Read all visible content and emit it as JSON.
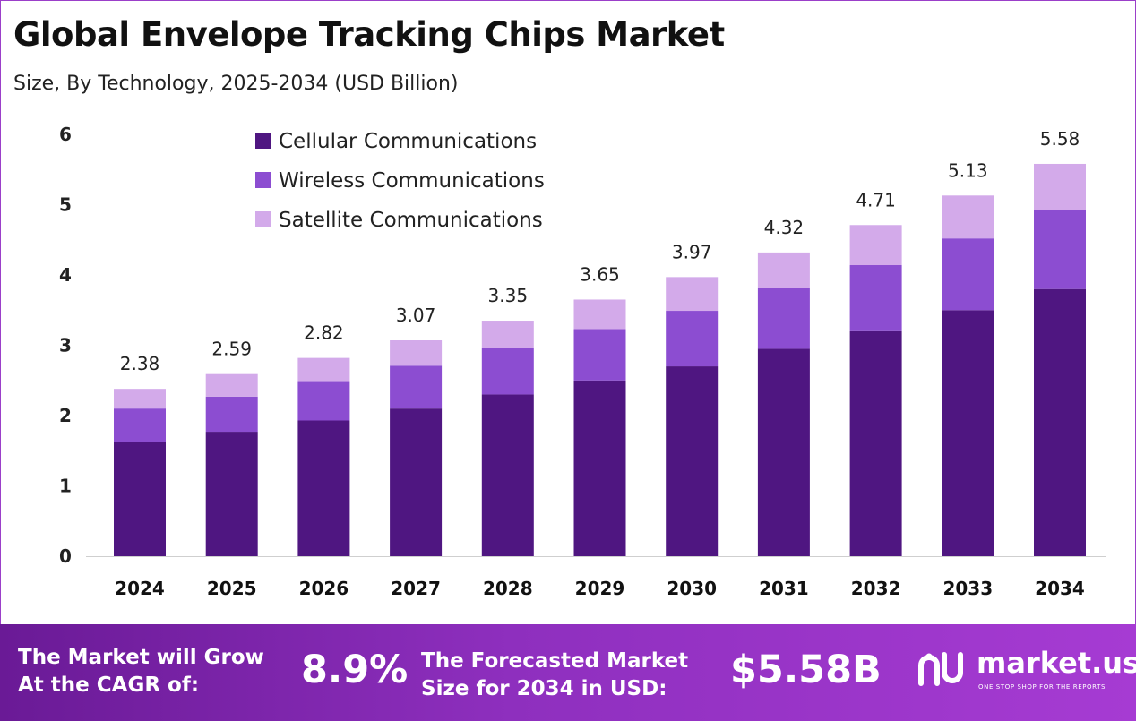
{
  "title": "Global Envelope Tracking Chips Market",
  "subtitle": "Size, By Technology, 2025-2034 (USD Billion)",
  "chart_data": {
    "type": "bar",
    "stacked": true,
    "categories": [
      "2024",
      "2025",
      "2026",
      "2027",
      "2028",
      "2029",
      "2030",
      "2031",
      "2032",
      "2033",
      "2034"
    ],
    "series": [
      {
        "name": "Cellular Communications",
        "color": "#4f1681",
        "values": [
          1.62,
          1.77,
          1.93,
          2.1,
          2.3,
          2.5,
          2.7,
          2.95,
          3.2,
          3.5,
          3.8
        ]
      },
      {
        "name": "Wireless Communications",
        "color": "#8c4dd1",
        "values": [
          0.48,
          0.5,
          0.56,
          0.61,
          0.66,
          0.73,
          0.79,
          0.86,
          0.94,
          1.02,
          1.12
        ]
      },
      {
        "name": "Satellite Communications",
        "color": "#d3aaea",
        "values": [
          0.28,
          0.32,
          0.33,
          0.36,
          0.39,
          0.42,
          0.48,
          0.51,
          0.57,
          0.61,
          0.66
        ]
      }
    ],
    "totals": [
      2.38,
      2.59,
      2.82,
      3.07,
      3.35,
      3.65,
      3.97,
      4.32,
      4.71,
      5.13,
      5.58
    ],
    "total_labels": [
      "2.38",
      "2.59",
      "2.82",
      "3.07",
      "3.35",
      "3.65",
      "3.97",
      "4.32",
      "4.71",
      "5.13",
      "5.58"
    ],
    "y_ticks": [
      "0",
      "1",
      "2",
      "3",
      "4",
      "5",
      "6"
    ],
    "ylim": [
      0,
      6
    ],
    "grid": false,
    "legend_position": "top-left"
  },
  "footer": {
    "cagr_line1": "The Market will Grow",
    "cagr_line2": "At the CAGR of:",
    "cagr_value": "8.9%",
    "forecast_line1": "The Forecasted Market",
    "forecast_line2": "Size for 2034 in USD:",
    "forecast_value": "$5.58B",
    "logo_name": "market.us",
    "logo_tagline": "ONE STOP SHOP FOR THE REPORTS"
  }
}
